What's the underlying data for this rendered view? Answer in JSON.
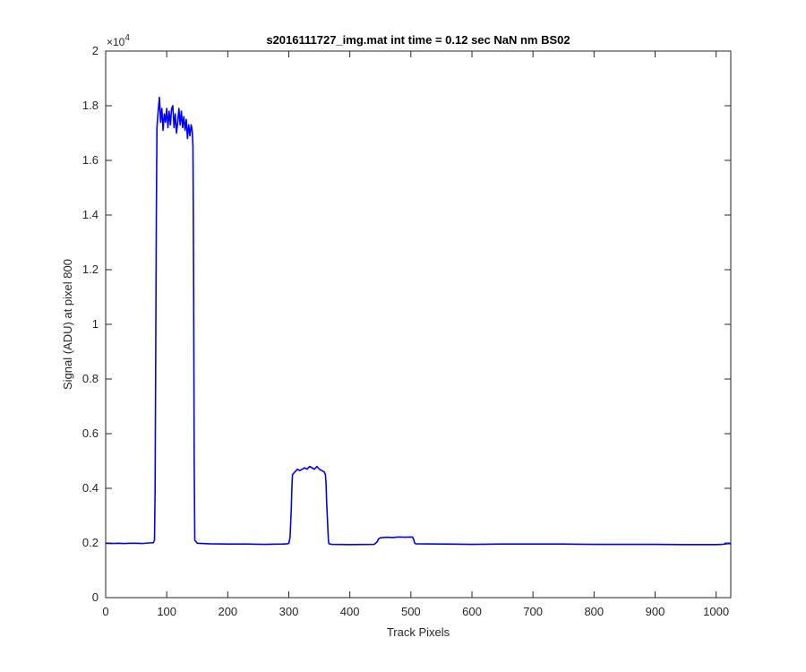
{
  "chart_data": {
    "type": "line",
    "title": "s2016111727_img.mat int time = 0.12 sec  NaN nm BS02",
    "xlabel": "Track Pixels",
    "ylabel": "Signal (ADU) at pixel 800",
    "y_multiplier_label": {
      "base": "×10",
      "exponent": "4"
    },
    "xlim": [
      0,
      1024
    ],
    "ylim": [
      0,
      2
    ],
    "y_scale": 10000,
    "x_ticks": [
      0,
      100,
      200,
      300,
      400,
      500,
      600,
      700,
      800,
      900,
      1000
    ],
    "x_tick_labels": [
      "0",
      "100",
      "200",
      "300",
      "400",
      "500",
      "600",
      "700",
      "800",
      "900",
      "1000"
    ],
    "y_ticks": [
      0,
      0.2,
      0.4,
      0.6,
      0.8,
      1,
      1.2,
      1.4,
      1.6,
      1.8,
      2
    ],
    "y_tick_labels": [
      "0",
      "0.2",
      "0.4",
      "0.6",
      "0.8",
      "1",
      "1.2",
      "1.4",
      "1.6",
      "1.8",
      "2"
    ],
    "grid": false,
    "line_color": "#0000ff",
    "series": [
      {
        "x": [
          0,
          10,
          20,
          30,
          40,
          50,
          60,
          70,
          78,
          80,
          81,
          82,
          83,
          84,
          86,
          88,
          90,
          92,
          94,
          96,
          98,
          100,
          102,
          104,
          106,
          108,
          110,
          112,
          114,
          116,
          118,
          120,
          122,
          124,
          126,
          128,
          130,
          132,
          134,
          136,
          138,
          140,
          141,
          142,
          143,
          144,
          145,
          146,
          150,
          170,
          200,
          230,
          260,
          290,
          298,
          300,
          302,
          304,
          305,
          306,
          310,
          314,
          318,
          322,
          326,
          330,
          334,
          338,
          342,
          346,
          350,
          354,
          358,
          360,
          361,
          362,
          364,
          365,
          366,
          370,
          400,
          440,
          445,
          447,
          450,
          460,
          470,
          480,
          490,
          500,
          503,
          505,
          506,
          508,
          550,
          600,
          650,
          700,
          750,
          800,
          850,
          900,
          950,
          1000,
          1010,
          1020,
          1024
        ],
        "y": [
          0.199,
          0.198,
          0.199,
          0.198,
          0.199,
          0.199,
          0.198,
          0.2,
          0.201,
          0.21,
          0.4,
          0.9,
          1.4,
          1.72,
          1.78,
          1.83,
          1.74,
          1.79,
          1.71,
          1.77,
          1.74,
          1.79,
          1.72,
          1.78,
          1.73,
          1.79,
          1.8,
          1.72,
          1.77,
          1.7,
          1.74,
          1.79,
          1.73,
          1.78,
          1.72,
          1.76,
          1.71,
          1.75,
          1.68,
          1.73,
          1.69,
          1.73,
          1.72,
          1.7,
          1.65,
          1.2,
          0.5,
          0.21,
          0.199,
          0.197,
          0.196,
          0.196,
          0.195,
          0.196,
          0.197,
          0.199,
          0.22,
          0.32,
          0.4,
          0.45,
          0.46,
          0.47,
          0.465,
          0.47,
          0.475,
          0.47,
          0.48,
          0.475,
          0.47,
          0.48,
          0.47,
          0.465,
          0.46,
          0.45,
          0.42,
          0.35,
          0.25,
          0.205,
          0.197,
          0.195,
          0.194,
          0.195,
          0.205,
          0.215,
          0.219,
          0.221,
          0.22,
          0.222,
          0.221,
          0.222,
          0.221,
          0.21,
          0.2,
          0.197,
          0.196,
          0.195,
          0.196,
          0.196,
          0.196,
          0.195,
          0.195,
          0.195,
          0.194,
          0.194,
          0.195,
          0.198,
          0.197
        ]
      }
    ]
  }
}
